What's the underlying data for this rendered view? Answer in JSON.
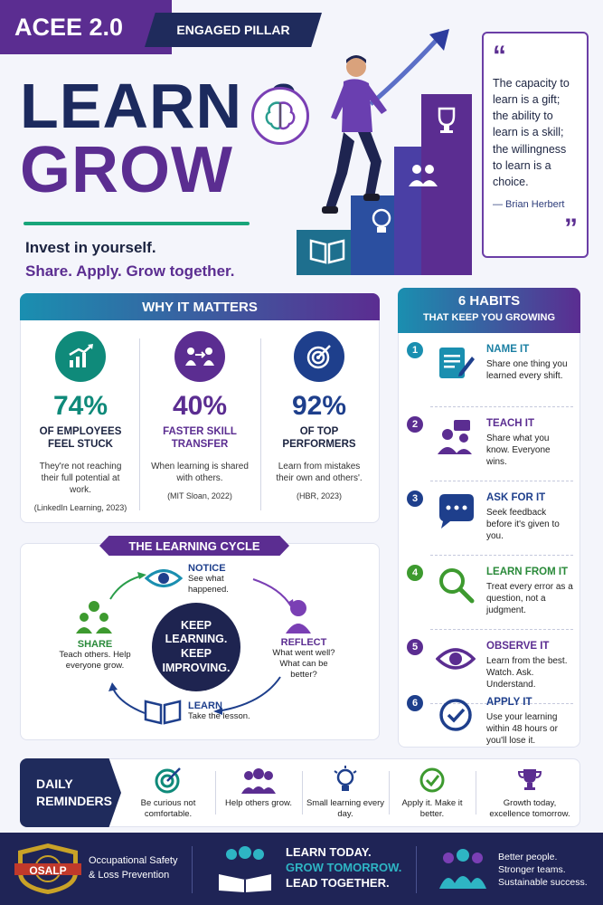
{
  "header": {
    "badge": "ACEE 2.0",
    "pillar": "ENGAGED PILLAR",
    "title_line1": "LEARN &",
    "title_line2": "GROW",
    "tagline1": "Invest in yourself.",
    "tagline2": "Share. Apply. Grow together."
  },
  "quote": {
    "open_mark": "“",
    "text": "The capacity to learn is a gift; the ability to learn is a skill; the willingness to learn is a choice.",
    "author": "— Brian Herbert",
    "close_mark": "”"
  },
  "why": {
    "heading": "WHY IT MATTERS",
    "stats": [
      {
        "value": "74%",
        "label": "OF EMPLOYEES FEEL STUCK",
        "desc": "They're not reaching their full potential at work.",
        "source": "(LinkedIn Learning, 2023)",
        "color": "#0f8a7a",
        "icon": "growth-chart-icon"
      },
      {
        "value": "40%",
        "label": "FASTER SKILL TRANSFER",
        "desc": "When learning is shared with others.",
        "source": "(MIT Sloan, 2022)",
        "color": "#5b2d91",
        "icon": "people-exchange-icon"
      },
      {
        "value": "92%",
        "label": "OF TOP PERFORMERS",
        "desc": "Learn from mistakes their own and others'.",
        "source": "(HBR, 2023)",
        "color": "#1e3f8c",
        "icon": "target-icon"
      }
    ]
  },
  "cycle": {
    "heading": "THE LEARNING CYCLE",
    "center": "KEEP LEARNING. KEEP IMPROVING.",
    "notice": {
      "title": "NOTICE",
      "text": "See what happened."
    },
    "reflect": {
      "title": "REFLECT",
      "text": "What went well? What can be better?"
    },
    "learn": {
      "title": "LEARN",
      "text": "Take the lesson."
    },
    "share": {
      "title": "SHARE",
      "text": "Teach others. Help everyone grow."
    }
  },
  "habits": {
    "heading1": "6 HABITS",
    "heading2": "THAT KEEP YOU GROWING",
    "items": [
      {
        "num": "1",
        "title": "NAME IT",
        "text": "Share one thing you learned every shift.",
        "color": "#1a8fb0",
        "icon": "notepad-pencil-icon"
      },
      {
        "num": "2",
        "title": "TEACH IT",
        "text": "Share what you know. Everyone wins.",
        "color": "#5b2d91",
        "icon": "teaching-people-icon"
      },
      {
        "num": "3",
        "title": "ASK FOR IT",
        "text": "Seek feedback before it's given to you.",
        "color": "#1e3f8c",
        "icon": "chat-bubble-icon"
      },
      {
        "num": "4",
        "title": "LEARN FROM IT",
        "text": "Treat every error as a question, not a judgment.",
        "color": "#3d9a2f",
        "icon": "magnifier-icon"
      },
      {
        "num": "5",
        "title": "OBSERVE IT",
        "text": "Learn from the best. Watch. Ask. Understand.",
        "color": "#5b2d91",
        "icon": "eye-icon"
      },
      {
        "num": "6",
        "title": "APPLY IT",
        "text": "Use your learning within 48 hours or you'll lose it.",
        "color": "#1e3f8c",
        "icon": "check-circle-icon"
      }
    ]
  },
  "reminders": {
    "tag_line1": "DAILY",
    "tag_line2": "REMINDERS",
    "items": [
      {
        "text": "Be curious not comfortable.",
        "icon": "target-icon"
      },
      {
        "text": "Help others grow.",
        "icon": "group-icon"
      },
      {
        "text": "Small learning every day.",
        "icon": "lightbulb-icon"
      },
      {
        "text": "Apply it. Make it better.",
        "icon": "check-circle-icon"
      },
      {
        "text": "Growth today, excellence tomorrow.",
        "icon": "trophy-icon"
      }
    ]
  },
  "footer": {
    "logo_text": "OSALP",
    "org_line1": "Occupational Safety",
    "org_line2": "& Loss Prevention",
    "slogan1": "LEARN TODAY.",
    "slogan2": "GROW TOMORROW.",
    "slogan3": "LEAD TOGETHER.",
    "outcome1": "Better people.",
    "outcome2": "Stronger teams.",
    "outcome3": "Sustainable success."
  }
}
